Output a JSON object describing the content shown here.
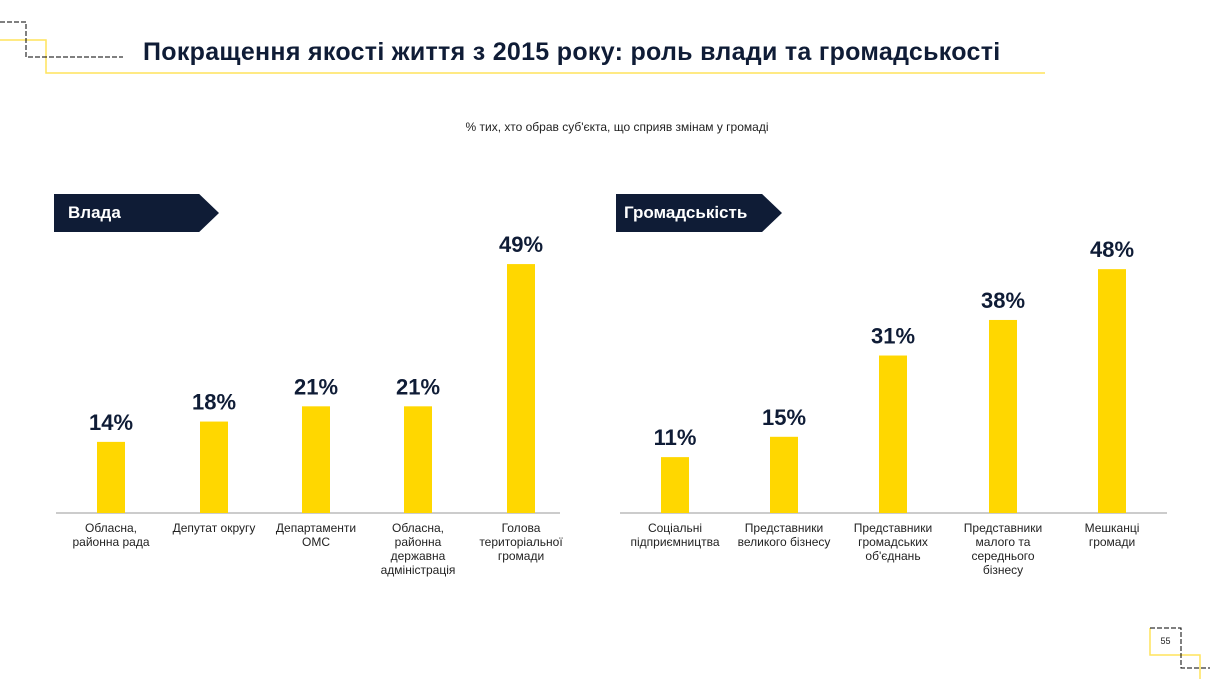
{
  "header": {
    "title": "Покращення якості життя з 2015 року: роль влади та громадськості",
    "subtitle": "% тих, хто обрав суб'єкта, що сприяв змінам у громаді"
  },
  "page_number": "55",
  "colors": {
    "bar": "#FFD700",
    "navy": "#0f1c36",
    "accent_line": "#FFE45C"
  },
  "chart_data": [
    {
      "type": "bar",
      "title": "Влада",
      "unit": "%",
      "ylim": [
        0,
        50
      ],
      "categories": [
        "Обласна, районна рада",
        "Депутат округу",
        "Департаменти ОМС",
        "Обласна, районна державна адміністрація",
        "Голова територіальної громади"
      ],
      "labels": [
        "14%",
        "18%",
        "21%",
        "21%",
        "49%"
      ],
      "values": [
        14,
        18,
        21,
        21,
        49
      ]
    },
    {
      "type": "bar",
      "title": "Громадськість",
      "unit": "%",
      "ylim": [
        0,
        50
      ],
      "categories": [
        "Соціальні підприємництва",
        "Представники великого бізнесу",
        "Представники громадських об'єднань",
        "Представники малого та середнього бізнесу",
        "Мешканці громади"
      ],
      "labels": [
        "11%",
        "15%",
        "31%",
        "38%",
        "48%"
      ],
      "values": [
        11,
        15,
        31,
        38,
        48
      ]
    }
  ]
}
